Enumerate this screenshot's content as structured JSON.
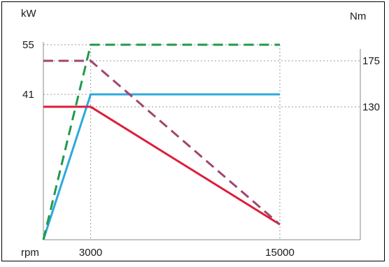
{
  "chart_data": {
    "type": "line",
    "title": "",
    "xlabel": "rpm",
    "ylabel_left": "kW",
    "ylabel_right": "Nm",
    "x_ticks": [
      3000,
      15000
    ],
    "x_tick_labels": [
      "3000",
      "15000"
    ],
    "y_left_ticks": [
      41,
      55
    ],
    "y_left_tick_labels": [
      "41",
      "55"
    ],
    "y_right_ticks": [
      130,
      175
    ],
    "y_right_tick_labels": [
      "130",
      "175"
    ],
    "series": [
      {
        "axis": "left",
        "color": "#2ea8dc",
        "dash": "solid",
        "points": [
          [
            0,
            0
          ],
          [
            3000,
            41
          ],
          [
            15000,
            41
          ]
        ]
      },
      {
        "axis": "left",
        "color": "#1f9a4c",
        "dash": "dashed",
        "points": [
          [
            0,
            0
          ],
          [
            3000,
            55
          ],
          [
            15000,
            55
          ]
        ]
      },
      {
        "axis": "right",
        "color": "#dc1f3c",
        "dash": "solid",
        "points": [
          [
            0,
            130
          ],
          [
            3000,
            130
          ],
          [
            15000,
            15
          ]
        ]
      },
      {
        "axis": "right",
        "color": "#a0466e",
        "dash": "dashed",
        "points": [
          [
            0,
            175
          ],
          [
            3000,
            175
          ],
          [
            15000,
            15
          ]
        ]
      }
    ],
    "grid": "dotted at tick values",
    "legend": "none"
  }
}
